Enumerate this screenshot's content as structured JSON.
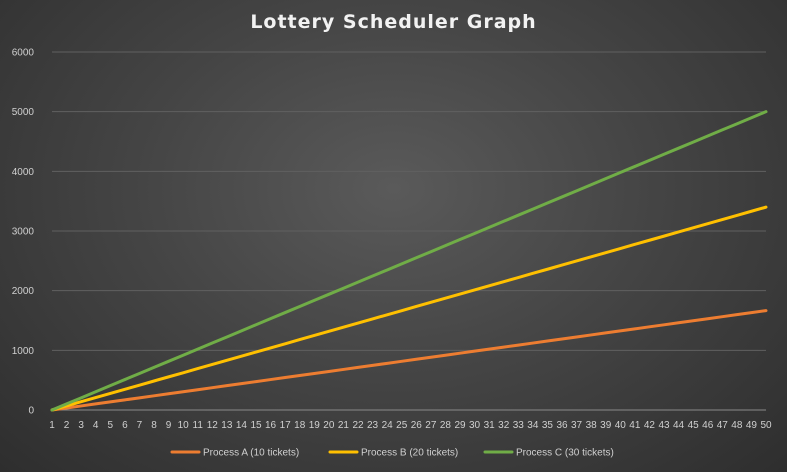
{
  "chart_data": {
    "type": "line",
    "title": "Lottery Scheduler Graph",
    "xlabel": "",
    "ylabel": "",
    "x": [
      1,
      2,
      3,
      4,
      5,
      6,
      7,
      8,
      9,
      10,
      11,
      12,
      13,
      14,
      15,
      16,
      17,
      18,
      19,
      20,
      21,
      22,
      23,
      24,
      25,
      26,
      27,
      28,
      29,
      30,
      31,
      32,
      33,
      34,
      35,
      36,
      37,
      38,
      39,
      40,
      41,
      42,
      43,
      44,
      45,
      46,
      47,
      48,
      49,
      50
    ],
    "ylim": [
      0,
      6000
    ],
    "yticks": [
      0,
      1000,
      2000,
      3000,
      4000,
      5000,
      6000
    ],
    "grid": true,
    "legend_position": "bottom",
    "series": [
      {
        "name": "Process A (10 tickets)",
        "color": "#ed7d31",
        "values": [
          0,
          34,
          68,
          102,
          136,
          170,
          204,
          238,
          272,
          306,
          340,
          374,
          408,
          442,
          476,
          510,
          544,
          578,
          612,
          646,
          680,
          714,
          748,
          782,
          816,
          850,
          884,
          918,
          952,
          986,
          1020,
          1054,
          1088,
          1122,
          1156,
          1190,
          1224,
          1258,
          1292,
          1326,
          1360,
          1394,
          1428,
          1462,
          1496,
          1530,
          1564,
          1598,
          1632,
          1666
        ]
      },
      {
        "name": "Process B (20 tickets)",
        "color": "#ffc000",
        "values": [
          0,
          69,
          139,
          208,
          278,
          347,
          416,
          486,
          555,
          624,
          694,
          763,
          833,
          902,
          971,
          1041,
          1110,
          1180,
          1249,
          1318,
          1388,
          1457,
          1526,
          1596,
          1665,
          1735,
          1804,
          1873,
          1943,
          2012,
          2082,
          2151,
          2220,
          2290,
          2359,
          2429,
          2498,
          2567,
          2637,
          2706,
          2776,
          2845,
          2914,
          2984,
          3053,
          3122,
          3192,
          3261,
          3331,
          3400
        ]
      },
      {
        "name": "Process C (30 tickets)",
        "color": "#70ad47",
        "values": [
          0,
          102,
          204,
          306,
          408,
          510,
          612,
          714,
          816,
          918,
          1020,
          1122,
          1224,
          1327,
          1429,
          1531,
          1633,
          1735,
          1837,
          1939,
          2041,
          2143,
          2245,
          2347,
          2449,
          2551,
          2653,
          2755,
          2857,
          2959,
          3061,
          3163,
          3265,
          3367,
          3469,
          3571,
          3673,
          3775,
          3878,
          3980,
          4082,
          4184,
          4286,
          4388,
          4490,
          4592,
          4694,
          4796,
          4898,
          5000
        ]
      }
    ]
  }
}
